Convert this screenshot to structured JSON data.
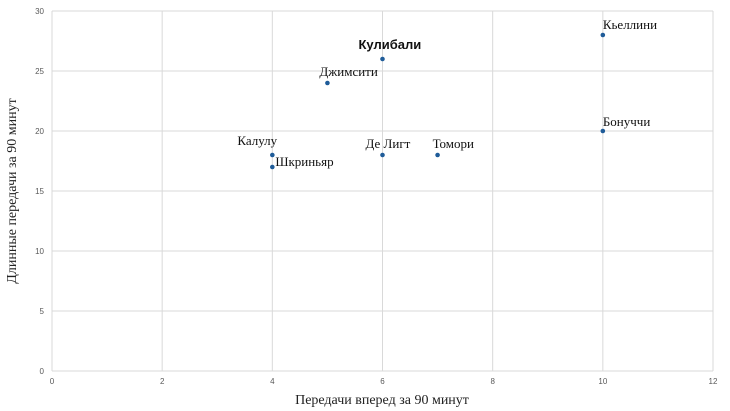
{
  "chart_data": {
    "type": "scatter",
    "title": "",
    "xlabel": "Передачи вперед за 90 минут",
    "ylabel": "Длинные передачи за 90 минут",
    "xlim": [
      0,
      12
    ],
    "ylim": [
      0,
      30
    ],
    "x_ticks": [
      "0",
      "2",
      "4",
      "6",
      "8",
      "10",
      "12"
    ],
    "y_ticks": [
      "0",
      "5",
      "10",
      "15",
      "20",
      "25",
      "30"
    ],
    "grid": true,
    "legend": "none",
    "point_color": "#1f5c99",
    "points": [
      {
        "label": "Кьеллини",
        "x": 10,
        "y": 28,
        "highlight": false
      },
      {
        "label": "Кулибали",
        "x": 6,
        "y": 26,
        "highlight": true
      },
      {
        "label": "Джимсити",
        "x": 5,
        "y": 24,
        "highlight": false
      },
      {
        "label": "Бонуччи",
        "x": 10,
        "y": 20,
        "highlight": false
      },
      {
        "label": "Калулу",
        "x": 4,
        "y": 18,
        "highlight": false
      },
      {
        "label": "Де Лигт",
        "x": 6,
        "y": 18,
        "highlight": false
      },
      {
        "label": "Томори",
        "x": 7,
        "y": 18,
        "highlight": false
      },
      {
        "label": "Шкриньяр",
        "x": 4,
        "y": 17,
        "highlight": false
      }
    ]
  }
}
